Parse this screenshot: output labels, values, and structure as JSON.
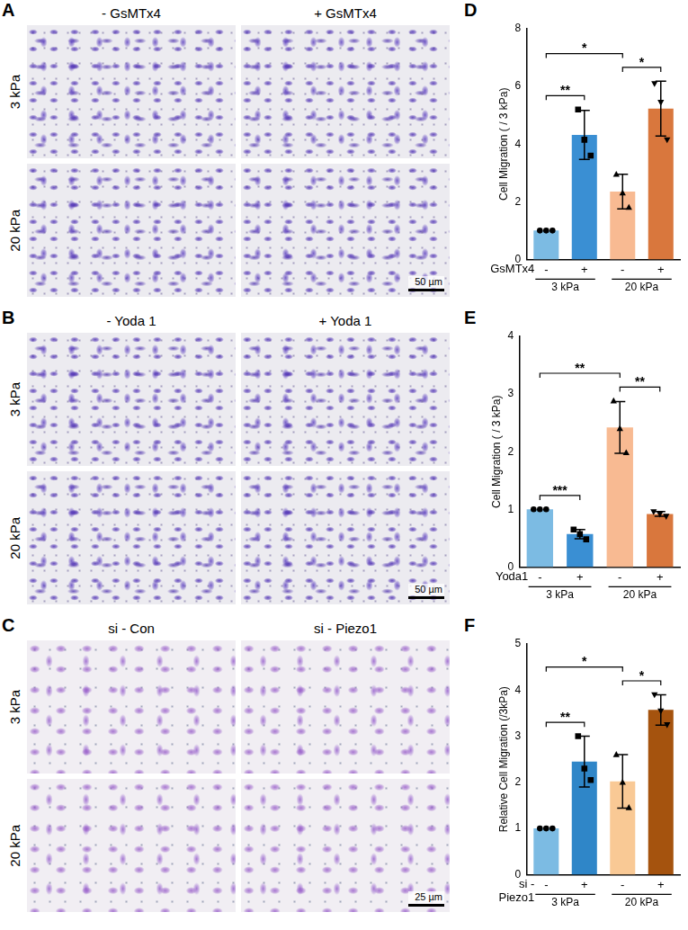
{
  "image_panels": [
    {
      "panel": "A",
      "columns": [
        "- GsMTx4",
        "+ GsMTx4"
      ],
      "rows": [
        "3 kPa",
        "20 kPa"
      ],
      "scale_bar": "50 µm"
    },
    {
      "panel": "B",
      "columns": [
        "- Yoda 1",
        "+ Yoda 1"
      ],
      "rows": [
        "3 kPa",
        "20 kPa"
      ],
      "scale_bar": "50 µm"
    },
    {
      "panel": "C",
      "columns": [
        "si - Con",
        "si - Piezo1"
      ],
      "rows": [
        "3 kPa",
        "20 kPa"
      ],
      "scale_bar": "25 µm"
    }
  ],
  "chart_data": [
    {
      "type": "bar",
      "panel": "D",
      "y_label": "Cell Migration ( / 3 kPa)",
      "categories": [
        "-",
        "+",
        "-",
        "+"
      ],
      "x_label": [
        "GsMTx4"
      ],
      "groups": [
        "3 kPa",
        "20 kPa"
      ],
      "values": [
        1.0,
        4.32,
        2.35,
        5.23
      ],
      "errors": [
        0,
        0.85,
        0.6,
        0.95
      ],
      "points": [
        [
          1,
          1,
          1
        ],
        [
          5.2,
          4.15,
          3.6
        ],
        [
          2.95,
          2.3,
          1.8
        ],
        [
          6.1,
          5.45,
          4.15
        ]
      ],
      "colors": [
        "#7cbbe3",
        "#3a8fd3",
        "#f8ba92",
        "#d9773d"
      ],
      "marker": [
        "circle",
        "square",
        "triangle",
        "triangle-down"
      ],
      "significance": [
        {
          "from": 0,
          "to": 1,
          "label": "**"
        },
        {
          "from": 2,
          "to": 3,
          "label": "*"
        },
        {
          "from": 0,
          "to": 2,
          "label": "*"
        }
      ],
      "ylim": [
        0,
        8
      ],
      "yticks": [
        0,
        2,
        4,
        6,
        8
      ],
      "grid": false
    },
    {
      "type": "bar",
      "panel": "E",
      "y_label": "Cell Migration ( / 3 kPa)",
      "categories": [
        "-",
        "+",
        "-",
        "+"
      ],
      "x_label": [
        "Yoda1"
      ],
      "groups": [
        "3 kPa",
        "20 kPa"
      ],
      "values": [
        1.0,
        0.57,
        2.42,
        0.92
      ],
      "errors": [
        0,
        0.08,
        0.45,
        0.04
      ],
      "points": [
        [
          1,
          1,
          1
        ],
        [
          0.65,
          0.57,
          0.48
        ],
        [
          2.88,
          2.4,
          1.98
        ],
        [
          0.96,
          0.92,
          0.88
        ]
      ],
      "colors": [
        "#7cbbe3",
        "#3a8fd3",
        "#f8ba92",
        "#d9773d"
      ],
      "marker": [
        "circle",
        "square",
        "triangle",
        "triangle-down"
      ],
      "significance": [
        {
          "from": 0,
          "to": 1,
          "label": "***"
        },
        {
          "from": 2,
          "to": 3,
          "label": "**"
        },
        {
          "from": 0,
          "to": 2,
          "label": "**"
        }
      ],
      "ylim": [
        0,
        4
      ],
      "yticks": [
        0,
        1,
        2,
        3,
        4
      ],
      "grid": false
    },
    {
      "type": "bar",
      "panel": "F",
      "y_label": "Relative Cell Migration (/3kPa)",
      "categories": [
        "-",
        "+",
        "-",
        "+"
      ],
      "x_label": [
        "si -",
        "Piezo1"
      ],
      "groups": [
        "3 kPa",
        "20 kPa"
      ],
      "values": [
        1.0,
        2.45,
        2.02,
        3.57
      ],
      "errors": [
        0,
        0.55,
        0.58,
        0.33
      ],
      "points": [
        [
          1,
          1,
          1
        ],
        [
          3.0,
          2.3,
          2.05
        ],
        [
          2.6,
          2.0,
          1.45
        ],
        [
          3.9,
          3.55,
          3.25
        ]
      ],
      "colors": [
        "#7cbbe3",
        "#2f86c8",
        "#f9c995",
        "#a5530e"
      ],
      "marker": [
        "circle",
        "square",
        "triangle",
        "triangle-down"
      ],
      "significance": [
        {
          "from": 0,
          "to": 1,
          "label": "**"
        },
        {
          "from": 2,
          "to": 3,
          "label": "*"
        },
        {
          "from": 0,
          "to": 2,
          "label": "*"
        }
      ],
      "ylim": [
        0,
        5
      ],
      "yticks": [
        0,
        1,
        2,
        3,
        4,
        5
      ],
      "grid": false
    }
  ]
}
